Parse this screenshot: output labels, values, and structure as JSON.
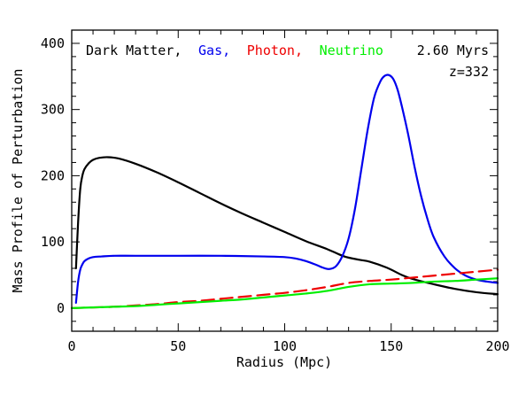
{
  "chart_data": {
    "type": "line",
    "title": "",
    "xlabel": "Radius (Mpc)",
    "ylabel": "Mass Profile of Perturbation",
    "xlim": [
      0,
      200
    ],
    "ylim": [
      -35,
      420
    ],
    "xticks": [
      0,
      50,
      100,
      150,
      200
    ],
    "yticks": [
      0,
      100,
      200,
      300,
      400
    ],
    "annotations": [
      "2.60 Myrs",
      "z=332"
    ],
    "legend": {
      "placement": "top-left",
      "entries": [
        {
          "label": "Dark Matter,",
          "color": "#000000"
        },
        {
          "label": "Gas,",
          "color": "#0000ee"
        },
        {
          "label": "Photon,",
          "color": "#ee0000"
        },
        {
          "label": "Neutrino",
          "color": "#00ee00"
        }
      ]
    },
    "grid": false,
    "series": [
      {
        "name": "Dark Matter",
        "color": "#000000",
        "dash": "solid",
        "x": [
          2,
          3,
          4,
          5,
          6,
          8,
          10,
          13,
          17,
          22,
          30,
          40,
          50,
          60,
          70,
          80,
          90,
          100,
          110,
          120,
          128,
          135,
          140,
          148,
          155,
          160,
          170,
          180,
          190,
          200
        ],
        "y": [
          60,
          130,
          180,
          200,
          210,
          219,
          224,
          227,
          228,
          226,
          218,
          205,
          190,
          174,
          158,
          143,
          129,
          115,
          101,
          89,
          78,
          73,
          70,
          61,
          50,
          44,
          36,
          29,
          24,
          21
        ]
      },
      {
        "name": "Gas",
        "color": "#0000ee",
        "dash": "solid",
        "x": [
          2,
          3,
          4,
          5,
          6,
          8,
          10,
          14,
          20,
          30,
          50,
          70,
          90,
          100,
          105,
          110,
          115,
          118,
          121,
          124,
          127,
          130,
          133,
          136,
          139,
          142,
          145,
          147,
          149,
          151,
          153,
          155,
          158,
          161,
          164,
          167,
          170,
          175,
          180,
          185,
          190,
          195,
          200
        ],
        "y": [
          8,
          40,
          58,
          66,
          71,
          75,
          77,
          78,
          79,
          79,
          79,
          79,
          78,
          77,
          75,
          71,
          65,
          61,
          59,
          63,
          78,
          105,
          150,
          210,
          270,
          318,
          343,
          351,
          352,
          346,
          330,
          305,
          262,
          213,
          170,
          135,
          107,
          78,
          60,
          49,
          43,
          40,
          38
        ]
      },
      {
        "name": "Photon",
        "color": "#ee0000",
        "dash": "dashed",
        "x": [
          0,
          10,
          20,
          30,
          40,
          50,
          60,
          70,
          80,
          90,
          100,
          110,
          120,
          130,
          140,
          150,
          160,
          170,
          180,
          190,
          200
        ],
        "y": [
          0,
          1,
          2,
          4,
          6,
          9,
          11,
          14,
          17,
          20,
          23,
          27,
          32,
          38,
          41,
          43,
          46,
          49,
          52,
          55,
          58
        ]
      },
      {
        "name": "Neutrino",
        "color": "#00ee00",
        "dash": "solid",
        "x": [
          0,
          10,
          20,
          30,
          40,
          50,
          60,
          70,
          80,
          90,
          100,
          110,
          120,
          130,
          140,
          150,
          160,
          170,
          180,
          190,
          200
        ],
        "y": [
          0,
          1,
          2,
          3,
          5,
          7,
          9,
          11,
          13,
          16,
          19,
          22,
          26,
          32,
          36,
          37,
          38,
          40,
          41,
          43,
          45
        ]
      }
    ]
  }
}
